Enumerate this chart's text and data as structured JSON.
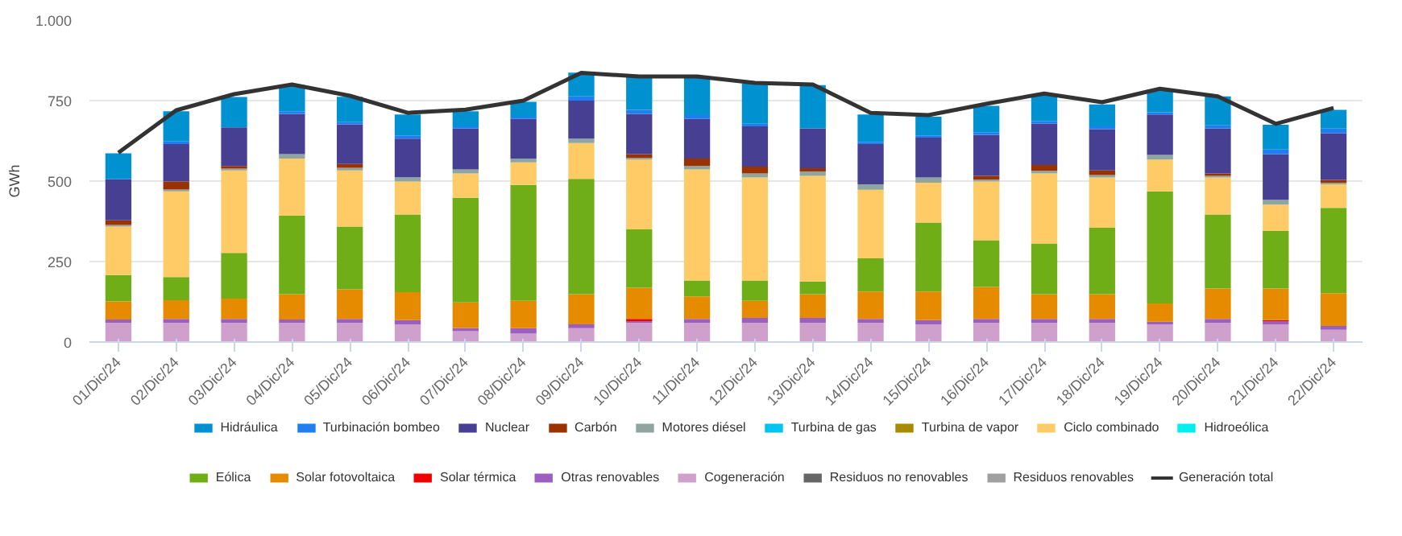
{
  "chart_data": {
    "type": "bar",
    "stacked": true,
    "ylabel": "GWh",
    "categories": [
      "01/Dic/24",
      "02/Dic/24",
      "03/Dic/24",
      "04/Dic/24",
      "05/Dic/24",
      "06/Dic/24",
      "07/Dic/24",
      "08/Dic/24",
      "09/Dic/24",
      "10/Dic/24",
      "11/Dic/24",
      "12/Dic/24",
      "13/Dic/24",
      "14/Dic/24",
      "15/Dic/24",
      "16/Dic/24",
      "17/Dic/24",
      "18/Dic/24",
      "19/Dic/24",
      "20/Dic/24",
      "21/Dic/24",
      "22/Dic/24"
    ],
    "ylim": [
      0,
      1000
    ],
    "yticks": [
      0,
      250,
      500,
      750,
      {
        "value": 1000,
        "label": "1.000"
      }
    ],
    "grid": "y",
    "legend": "bottom",
    "series": [
      {
        "name": "Residuos renovables",
        "color": "#a0a0a0",
        "values": [
          0,
          0,
          0,
          0,
          0,
          0,
          0,
          0,
          0,
          0,
          0,
          0,
          0,
          0,
          0,
          0,
          0,
          0,
          0,
          0,
          0,
          0
        ]
      },
      {
        "name": "Residuos no renovables",
        "color": "#666666",
        "values": [
          0,
          0,
          0,
          0,
          0,
          0,
          0,
          0,
          0,
          0,
          0,
          null,
          0,
          0,
          0,
          0,
          0,
          0,
          0,
          0,
          0,
          0
        ]
      },
      {
        "name": "Cogeneración",
        "color": "#d0a0cc",
        "values": [
          60,
          60,
          60,
          60,
          60,
          55,
          34,
          26,
          43,
          60,
          60,
          60,
          60,
          60,
          55,
          60,
          60,
          60,
          55,
          60,
          55,
          38
        ]
      },
      {
        "name": "Otras renovables",
        "color": "#9b5fc0",
        "values": [
          10,
          12,
          12,
          10,
          12,
          13,
          10,
          17,
          12,
          5,
          12,
          15,
          15,
          12,
          13,
          12,
          12,
          12,
          8,
          12,
          10,
          12
        ]
      },
      {
        "name": "Solar térmica",
        "color": "#f00000",
        "values": [
          0,
          0,
          0,
          0,
          0,
          0,
          0,
          0,
          0,
          7,
          0,
          0,
          0,
          0,
          0,
          0,
          0,
          0,
          0,
          0,
          3,
          0
        ]
      },
      {
        "name": "Solar fotovoltaica",
        "color": "#e68a00",
        "values": [
          56,
          58,
          63,
          79,
          92,
          87,
          79,
          85,
          94,
          97,
          70,
          53,
          74,
          85,
          89,
          99,
          77,
          77,
          57,
          94,
          98,
          102
        ]
      },
      {
        "name": "Eólica",
        "color": "#6fae16",
        "values": [
          82,
          72,
          142,
          244,
          195,
          241,
          325,
          360,
          358,
          181,
          49,
          63,
          39,
          103,
          214,
          145,
          157,
          206,
          348,
          230,
          179,
          265
        ]
      },
      {
        "name": "Hidroeólica",
        "color": "#00f0f0",
        "values": [
          0,
          0,
          0,
          0,
          0,
          0,
          0,
          0,
          0,
          0,
          0,
          0,
          0,
          0,
          0,
          0,
          0,
          0,
          0,
          0,
          0,
          0
        ]
      },
      {
        "name": "Ciclo combinado",
        "color": "#ffcb66",
        "values": [
          151,
          266,
          256,
          177,
          174,
          103,
          76,
          70,
          111,
          217,
          345,
          320,
          328,
          213,
          124,
          183,
          218,
          156,
          99,
          115,
          82,
          73
        ]
      },
      {
        "name": "Turbina de vapor",
        "color": "#a88a00",
        "values": [
          0,
          0,
          0,
          0,
          0,
          0,
          0,
          0,
          0,
          0,
          0,
          0,
          0,
          0,
          0,
          0,
          0,
          0,
          0,
          0,
          0,
          0
        ]
      },
      {
        "name": "Turbina de gas",
        "color": "#00c4f0",
        "values": [
          0,
          0,
          0,
          0,
          0,
          0,
          0,
          0,
          0,
          0,
          0,
          0,
          0,
          0,
          0,
          0,
          0,
          0,
          0,
          0,
          0,
          0
        ]
      },
      {
        "name": "Motores diésel",
        "color": "#8fa59f",
        "values": [
          5,
          6,
          6,
          14,
          8,
          13,
          12,
          12,
          14,
          5,
          11,
          13,
          14,
          17,
          16,
          6,
          8,
          8,
          14,
          5,
          15,
          5
        ]
      },
      {
        "name": "Carbón",
        "color": "#9a3200",
        "values": [
          14,
          25,
          8,
          0,
          12,
          0,
          0,
          0,
          0,
          12,
          23,
          21,
          10,
          0,
          0,
          11,
          18,
          14,
          0,
          8,
          0,
          9
        ]
      },
      {
        "name": "Nuclear",
        "color": "#463f92",
        "values": [
          127,
          116,
          120,
          125,
          123,
          120,
          127,
          123,
          118,
          125,
          123,
          125,
          124,
          125,
          124,
          128,
          128,
          128,
          126,
          140,
          142,
          145
        ]
      },
      {
        "name": "Turbinación bombeo",
        "color": "#1f7ef0",
        "values": [
          2,
          8,
          0,
          8,
          7,
          10,
          7,
          7,
          13,
          12,
          12,
          8,
          0,
          7,
          7,
          8,
          9,
          9,
          7,
          9,
          14,
          14
        ]
      },
      {
        "name": "Hidráulica",
        "color": "#0091d0",
        "values": [
          79,
          94,
          94,
          81,
          79,
          65,
          47,
          46,
          74,
          102,
          118,
          125,
          134,
          85,
          58,
          82,
          80,
          68,
          70,
          90,
          77,
          58
        ]
      },
      {
        "name": "Generación total",
        "type": "line",
        "color": "#333333",
        "values": [
          588,
          720,
          770,
          800,
          765,
          712,
          722,
          750,
          836,
          825,
          825,
          805,
          800,
          712,
          705,
          740,
          772,
          745,
          787,
          763,
          678,
          727
        ]
      }
    ]
  }
}
